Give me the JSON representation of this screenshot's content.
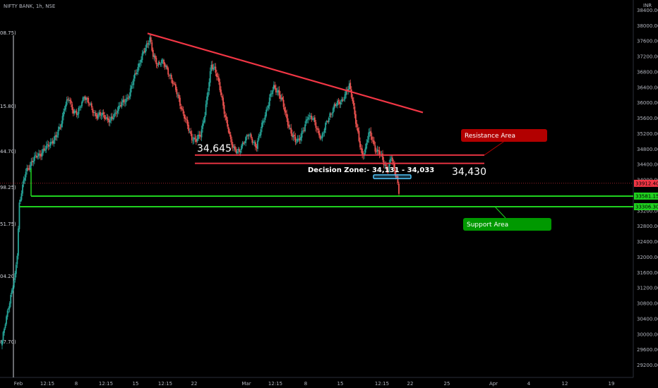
{
  "header": {
    "symbol": "NIFTY BANK, 1h, NSE",
    "currency": "INR"
  },
  "chart_data": {
    "type": "candlestick",
    "ylim": [
      29000,
      38400
    ],
    "y_ticks": [
      29200,
      29600,
      30000,
      30400,
      30800,
      31200,
      31600,
      32000,
      32400,
      32800,
      33200,
      33600,
      34000,
      34400,
      34800,
      35200,
      35600,
      36000,
      36400,
      36800,
      37200,
      37600,
      38000,
      38400
    ],
    "y_tick_labels": [
      "29200.00",
      "29600.00",
      "30000.00",
      "30400.00",
      "30800.00",
      "31200.00",
      "31600.00",
      "32000.00",
      "32400.00",
      "32800.00",
      "33200.00",
      "33600.00",
      "34000.00",
      "34400.00",
      "34800.00",
      "35200.00",
      "35600.00",
      "36000.00",
      "36400.00",
      "36800.00",
      "37200.00",
      "37600.00",
      "38000.00",
      "38400.00"
    ],
    "x_ticks": [
      "Feb",
      "12:15",
      "8",
      "12:15",
      "15",
      "12:15",
      "22",
      "Mar",
      "12:15",
      "8",
      "15",
      "12:15",
      "22",
      "25",
      "Apr",
      "4",
      "12",
      "19"
    ],
    "left_axis_labels": [
      "08.75)",
      "15.80)",
      "44.70)",
      "98.25)",
      "51.75)",
      "04.20)",
      "87.70)"
    ],
    "price_badges": [
      {
        "label": "33912.40",
        "value": 33912.4,
        "color": "#f23645"
      },
      {
        "label": "33581.15",
        "value": 33581.15,
        "color": "#1fd11f"
      },
      {
        "label": "33306.30",
        "value": 33306.3,
        "color": "#1fd11f"
      }
    ],
    "levels": {
      "resistance_upper": 34645,
      "resistance_lower": 34430,
      "decision_high": 34131,
      "decision_low": 34033,
      "support_upper": 33581.15,
      "support_lower": 33306.3
    },
    "trendline": {
      "from_value": 37800,
      "to_value": 35750
    },
    "annotations": {
      "resistance_value": "34,645",
      "resistance_lower_value": "34,430",
      "decision_zone": "Decision Zone:- 34,131 - 34,033",
      "resistance_area": "Resistance Area",
      "support_area": "Support Area"
    },
    "colors": {
      "up": "#26a69a",
      "down": "#ef5350",
      "trendline": "#f23645",
      "support": "#1fd11f",
      "resistance_box": "#b20000",
      "support_box": "#009900",
      "zone": "#4fc3f7"
    },
    "waypoints": [
      [
        0,
        29800
      ],
      [
        3,
        30300
      ],
      [
        6,
        30750
      ],
      [
        9,
        31100
      ],
      [
        12,
        31500
      ],
      [
        14,
        32100
      ],
      [
        16,
        33400
      ],
      [
        18,
        33700
      ],
      [
        22,
        34200
      ],
      [
        28,
        34500
      ],
      [
        34,
        34650
      ],
      [
        40,
        34800
      ],
      [
        46,
        35000
      ],
      [
        50,
        35100
      ],
      [
        54,
        35400
      ],
      [
        58,
        35900
      ],
      [
        62,
        36100
      ],
      [
        66,
        35800
      ],
      [
        70,
        35700
      ],
      [
        76,
        36200
      ],
      [
        82,
        35900
      ],
      [
        88,
        35650
      ],
      [
        94,
        35700
      ],
      [
        100,
        35500
      ],
      [
        106,
        35800
      ],
      [
        112,
        36000
      ],
      [
        118,
        36200
      ],
      [
        124,
        36800
      ],
      [
        130,
        37200
      ],
      [
        134,
        37500
      ],
      [
        137,
        37700
      ],
      [
        140,
        37200
      ],
      [
        144,
        37000
      ],
      [
        148,
        37100
      ],
      [
        152,
        36900
      ],
      [
        156,
        36700
      ],
      [
        160,
        36400
      ],
      [
        164,
        36100
      ],
      [
        168,
        35700
      ],
      [
        172,
        35400
      ],
      [
        176,
        35100
      ],
      [
        180,
        35000
      ],
      [
        184,
        35200
      ],
      [
        188,
        35700
      ],
      [
        191,
        36300
      ],
      [
        194,
        37000
      ],
      [
        197,
        36900
      ],
      [
        200,
        36600
      ],
      [
        204,
        36100
      ],
      [
        208,
        35500
      ],
      [
        212,
        35000
      ],
      [
        216,
        34800
      ],
      [
        220,
        34700
      ],
      [
        224,
        35000
      ],
      [
        228,
        35200
      ],
      [
        232,
        35000
      ],
      [
        236,
        34900
      ],
      [
        240,
        35300
      ],
      [
        244,
        35700
      ],
      [
        248,
        36100
      ],
      [
        252,
        36400
      ],
      [
        256,
        36300
      ],
      [
        260,
        36000
      ],
      [
        264,
        35600
      ],
      [
        268,
        35200
      ],
      [
        272,
        35000
      ],
      [
        276,
        35100
      ],
      [
        280,
        35300
      ],
      [
        284,
        35700
      ],
      [
        288,
        35600
      ],
      [
        292,
        35300
      ],
      [
        296,
        35100
      ],
      [
        300,
        35400
      ],
      [
        304,
        35700
      ],
      [
        308,
        35900
      ],
      [
        312,
        36000
      ],
      [
        316,
        36100
      ],
      [
        320,
        36300
      ],
      [
        322,
        36450
      ],
      [
        325,
        36100
      ],
      [
        328,
        35500
      ],
      [
        331,
        35000
      ],
      [
        334,
        34650
      ],
      [
        337,
        34800
      ],
      [
        340,
        35200
      ],
      [
        343,
        35100
      ],
      [
        346,
        34800
      ],
      [
        349,
        34700
      ],
      [
        352,
        34600
      ],
      [
        355,
        34400
      ],
      [
        358,
        34250
      ],
      [
        361,
        34600
      ],
      [
        364,
        34250
      ],
      [
        366,
        34100
      ],
      [
        368,
        33650
      ]
    ]
  }
}
